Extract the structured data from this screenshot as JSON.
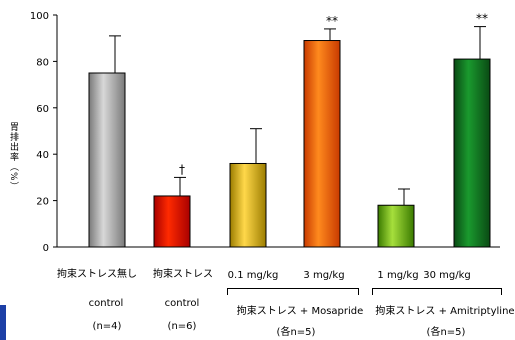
{
  "chart_data": {
    "type": "bar",
    "ylabel": "胃排出率（%）",
    "ylim": [
      0,
      100
    ],
    "yticks": [
      0,
      20,
      40,
      60,
      80,
      100
    ],
    "bars": [
      {
        "value": 75,
        "error": 16,
        "annotation": "",
        "color_top": "#d8d8d8",
        "color_bottom": "#7a7a7a"
      },
      {
        "value": 22,
        "error": 8,
        "annotation": "†",
        "color_top": "#ff2a00",
        "color_bottom": "#a80000"
      },
      {
        "value": 36,
        "error": 15,
        "annotation": "",
        "color_top": "#ffd84a",
        "color_bottom": "#9c7d00"
      },
      {
        "value": 89,
        "error": 5,
        "annotation": "**",
        "color_top": "#ff8a1e",
        "color_bottom": "#c83a00"
      },
      {
        "value": 18,
        "error": 7,
        "annotation": "",
        "color_top": "#a6df3c",
        "color_bottom": "#3a7a00"
      },
      {
        "value": 81,
        "error": 14,
        "annotation": "**",
        "color_top": "#1a9a2e",
        "color_bottom": "#0a4a14"
      }
    ]
  },
  "labels": {
    "g1_name": "拘束ストレス無し",
    "g1_sub": "control",
    "g1_n": "(n=4)",
    "g2_name": "拘束ストレス",
    "g2_sub": "control",
    "g2_n": "(n=6)",
    "mos_dose1": "0.1 mg/kg",
    "mos_dose2": "3 mg/kg",
    "mos_group": "拘束ストレス + Mosapride",
    "mos_n": "(各n=5)",
    "ami_dose1": "1 mg/kg",
    "ami_dose2": "30 mg/kg",
    "ami_group": "拘束ストレス + Amitriptyline",
    "ami_n": "(各n=5)"
  }
}
